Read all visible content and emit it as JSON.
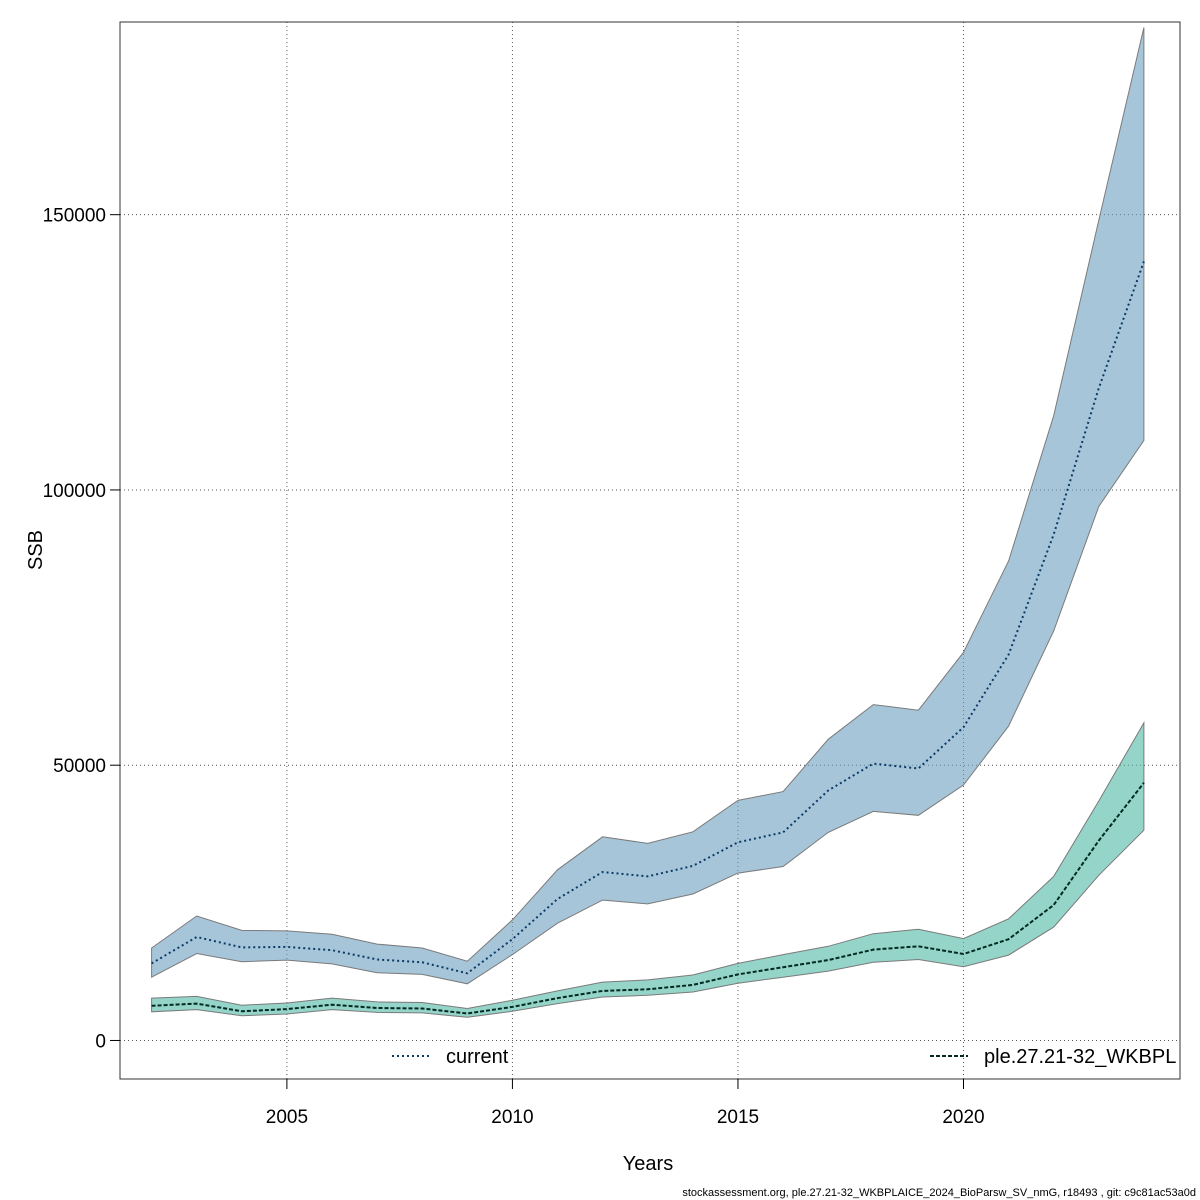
{
  "chart_data": {
    "type": "line",
    "xlabel": "Years",
    "ylabel": "SSB",
    "xlim": [
      2001.3,
      2024.8
    ],
    "ylim": [
      -7000,
      185000
    ],
    "x_ticks": [
      2005,
      2010,
      2015,
      2020
    ],
    "y_ticks": [
      0,
      50000,
      100000,
      150000
    ],
    "grid": true,
    "legend_placement": "bottom",
    "x": [
      2002,
      2003,
      2004,
      2005,
      2006,
      2007,
      2008,
      2009,
      2010,
      2011,
      2012,
      2013,
      2014,
      2015,
      2016,
      2017,
      2018,
      2019,
      2020,
      2021,
      2022,
      2023,
      2024
    ],
    "series": [
      {
        "name": "current",
        "line_color": "#0a3a66",
        "fill_color": "#6b9fbf",
        "line_style": "dotted",
        "values": [
          14000,
          18800,
          16900,
          17000,
          16400,
          14700,
          14200,
          12200,
          18400,
          25700,
          30600,
          29800,
          31700,
          36000,
          37800,
          45400,
          50300,
          49400,
          56900,
          70100,
          91900,
          118500,
          141500
        ],
        "lower": [
          11500,
          15800,
          14300,
          14600,
          13900,
          12300,
          12000,
          10300,
          15600,
          21300,
          25500,
          24800,
          26600,
          30400,
          31600,
          37800,
          41600,
          40900,
          46400,
          57100,
          74400,
          97000,
          109000
        ],
        "upper": [
          16800,
          22600,
          20000,
          19900,
          19300,
          17500,
          16800,
          14400,
          21900,
          31000,
          37000,
          35800,
          37900,
          43600,
          45200,
          54700,
          61000,
          60000,
          70500,
          87100,
          113500,
          149000,
          184000
        ]
      },
      {
        "name": "ple.27.21-32_WKBPL",
        "line_color": "#002a22",
        "fill_color": "#4fb8a4",
        "line_style": "dashed",
        "values": [
          6300,
          6700,
          5300,
          5700,
          6500,
          5900,
          5800,
          4900,
          6100,
          7700,
          9000,
          9300,
          10100,
          12000,
          13300,
          14600,
          16500,
          17100,
          15700,
          18400,
          24600,
          36300,
          46800
        ],
        "lower": [
          5200,
          5600,
          4500,
          4800,
          5600,
          5100,
          5000,
          4200,
          5300,
          6700,
          7900,
          8200,
          8800,
          10400,
          11500,
          12600,
          14200,
          14700,
          13400,
          15500,
          20600,
          30000,
          38200
        ],
        "upper": [
          7700,
          8000,
          6400,
          6800,
          7700,
          7000,
          6900,
          5800,
          7300,
          9000,
          10600,
          11000,
          11900,
          14000,
          15600,
          17100,
          19400,
          20200,
          18500,
          22100,
          29800,
          43500,
          57700
        ]
      }
    ]
  },
  "footer_text": "stockassessment.org, ple.27.21-32_WKBPLAICE_2024_BioParsw_SV_nmG, r18493 , git: c9c81ac53a0d"
}
